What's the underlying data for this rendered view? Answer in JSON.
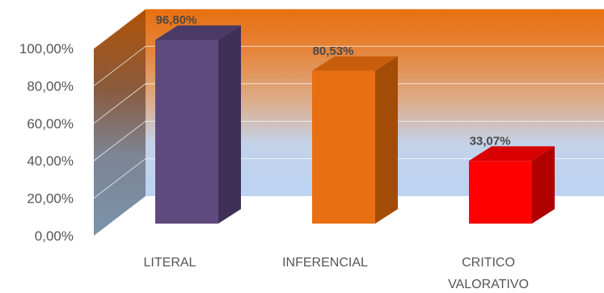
{
  "chart_data": {
    "type": "bar",
    "categories": [
      "LITERAL",
      "INFERENCIAL",
      "CRITICO VALORATIVO"
    ],
    "category_lines": [
      [
        "LITERAL"
      ],
      [
        "INFERENCIAL"
      ],
      [
        "CRITICO",
        "VALORATIVO"
      ]
    ],
    "values": [
      96.8,
      80.53,
      33.07
    ],
    "data_labels": [
      "96,80%",
      "80,53%",
      "33,07%"
    ],
    "yticks": [
      {
        "value": 0,
        "label": "0,00%"
      },
      {
        "value": 20,
        "label": "20,00%"
      },
      {
        "value": 40,
        "label": "40,00%"
      },
      {
        "value": 60,
        "label": "60,00%"
      },
      {
        "value": 80,
        "label": "80,00%"
      },
      {
        "value": 100,
        "label": "100,00%"
      }
    ],
    "ylim": [
      0,
      100
    ],
    "grid": true,
    "bar_colors": [
      {
        "front": "#5f4a7e",
        "side": "#3f3058",
        "top": "#4a3a66"
      },
      {
        "front": "#e86f12",
        "side": "#a34c08",
        "top": "#c85e0c"
      },
      {
        "front": "#ff0000",
        "side": "#b00000",
        "top": "#d80000"
      }
    ]
  }
}
